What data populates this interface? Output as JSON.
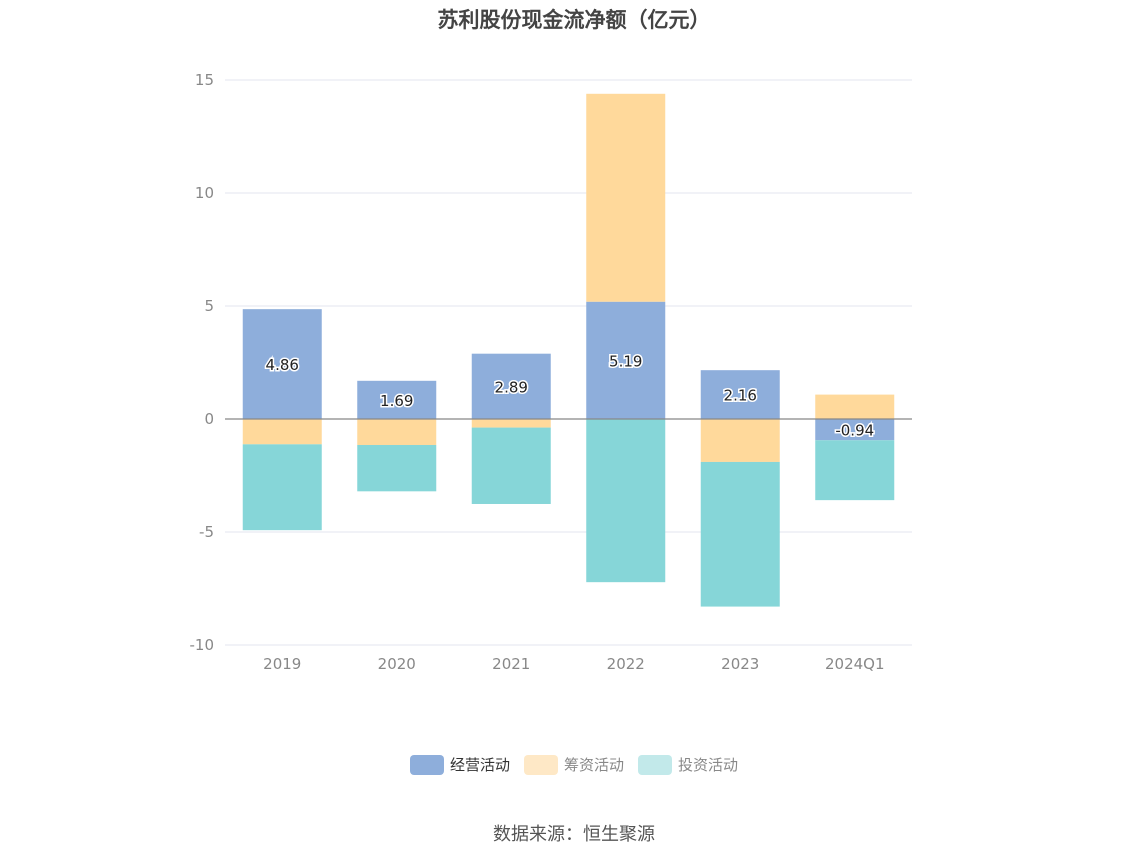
{
  "chart_data": {
    "type": "bar",
    "stacked": true,
    "title": "苏利股份现金流净额（亿元）",
    "categories": [
      "2019",
      "2020",
      "2021",
      "2022",
      "2023",
      "2024Q1"
    ],
    "ylim": [
      -10,
      15
    ],
    "yticks": [
      15,
      10,
      5,
      0,
      -5,
      -10
    ],
    "grid": true,
    "legend_position": "bottom",
    "series": [
      {
        "name": "经营活动",
        "color": "#8eaedb",
        "values": [
          4.86,
          1.69,
          2.89,
          5.19,
          2.16,
          -0.94
        ],
        "show_labels": true
      },
      {
        "name": "筹资活动",
        "color": "#ffd99b",
        "values": [
          -1.12,
          -1.15,
          -0.38,
          9.2,
          -1.9,
          1.08
        ],
        "show_labels": false
      },
      {
        "name": "投资活动",
        "color": "#86d6d8",
        "values": [
          -3.8,
          -2.05,
          -3.38,
          -7.22,
          -6.4,
          -2.65
        ],
        "show_labels": false
      }
    ],
    "legend_colors": [
      "#8eaedb",
      "#fee8c6",
      "#c2e9ea"
    ]
  },
  "source": "数据来源：恒生聚源"
}
